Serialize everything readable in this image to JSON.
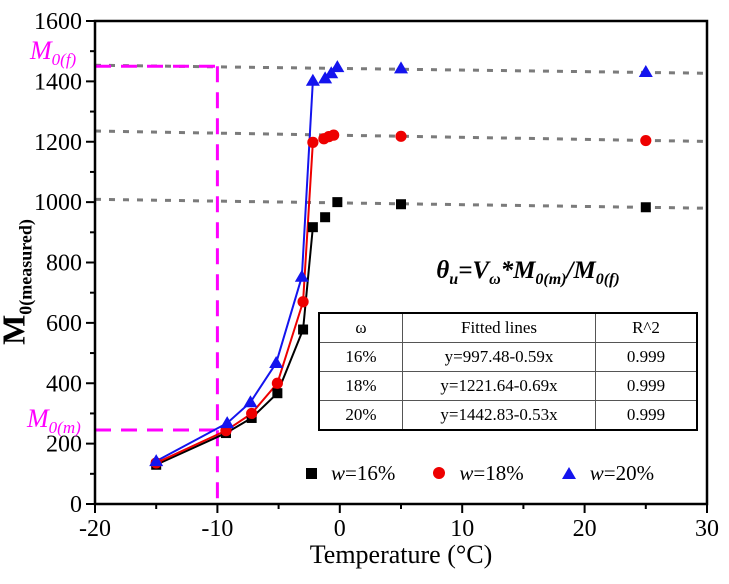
{
  "figure": {
    "background": "#ffffff",
    "frame_color": "#000000",
    "grid_dash_color": "#7b7b7b",
    "reference_color": "#ff00ff"
  },
  "axes": {
    "x": {
      "label": "Temperature (°C)",
      "min": -20,
      "max": 30,
      "major_ticks": [
        -20,
        -10,
        0,
        10,
        20,
        30
      ],
      "minor_step": 5
    },
    "y": {
      "label_main": "M",
      "label_sub": "0(measured)",
      "min": 0,
      "max": 1600,
      "major_ticks": [
        0,
        200,
        400,
        600,
        800,
        1000,
        1200,
        1400,
        1600
      ],
      "minor_step": 100
    }
  },
  "annotations": {
    "m0f": {
      "main": "M",
      "sub": "0(f)"
    },
    "m0m": {
      "main": "M",
      "sub": "0(m)"
    },
    "m0f_value": 1450,
    "m0m_value": 245,
    "ref_x": -10,
    "m0m_x_end": -8.8,
    "equation": {
      "p1": "θ",
      "s1": "u",
      "p2": "=V",
      "s2": "ω",
      "p3": "*M",
      "s3": "0(m)",
      "p4": "/M",
      "s4": "0(f)"
    }
  },
  "table": {
    "headers": [
      "ω",
      "Fitted lines",
      "R^2"
    ],
    "rows": [
      [
        "16%",
        "y=997.48-0.59x",
        "0.999"
      ],
      [
        "18%",
        "y=1221.64-0.69x",
        "0.999"
      ],
      [
        "20%",
        "y=1442.83-0.53x",
        "0.999"
      ]
    ]
  },
  "legend": {
    "items": [
      {
        "marker": "square",
        "color": "#000000",
        "var": "w",
        "rest": "=16%"
      },
      {
        "marker": "circle",
        "color": "#ee0000",
        "var": "w",
        "rest": "=18%"
      },
      {
        "marker": "triangle",
        "color": "#1414ee",
        "var": "w",
        "rest": "=20%"
      }
    ]
  },
  "chart_data": {
    "type": "line",
    "title": "",
    "xlabel": "Temperature (°C)",
    "ylabel": "M0(measured)",
    "xlim": [
      -20,
      30
    ],
    "ylim": [
      0,
      1600
    ],
    "grid": false,
    "legend_position": "bottom-inside",
    "series": [
      {
        "name": "w=16%",
        "marker": "square",
        "color": "#000000",
        "line_through": 6,
        "points": [
          [
            -15,
            130
          ],
          [
            -9.3,
            235
          ],
          [
            -7.2,
            285
          ],
          [
            -5.1,
            367
          ],
          [
            -3,
            578
          ],
          [
            -2.2,
            917
          ],
          [
            -1.2,
            950
          ],
          [
            -0.2,
            1000
          ],
          [
            5,
            993
          ],
          [
            25,
            983
          ]
        ],
        "fit": {
          "equation": "y=997.48-0.59x",
          "intercept": 997.48,
          "slope": -0.59,
          "r2": 0.999
        }
      },
      {
        "name": "w=18%",
        "marker": "circle",
        "color": "#ee0000",
        "line_through": 6,
        "points": [
          [
            -15,
            136
          ],
          [
            -9.3,
            243
          ],
          [
            -7.2,
            300
          ],
          [
            -5.1,
            400
          ],
          [
            -3,
            670
          ],
          [
            -2.2,
            1198
          ],
          [
            -1.3,
            1210
          ],
          [
            -0.9,
            1217
          ],
          [
            -0.5,
            1222
          ],
          [
            5,
            1218
          ],
          [
            25,
            1204
          ]
        ],
        "fit": {
          "equation": "y=1221.64-0.69x",
          "intercept": 1221.64,
          "slope": -0.69,
          "r2": 0.999
        }
      },
      {
        "name": "w=20%",
        "marker": "triangle",
        "color": "#1414ee",
        "line_through": 6,
        "points": [
          [
            -15,
            142
          ],
          [
            -9.2,
            268
          ],
          [
            -7.3,
            337
          ],
          [
            -5.2,
            467
          ],
          [
            -3.1,
            753
          ],
          [
            -2.2,
            1402
          ],
          [
            -1.2,
            1410
          ],
          [
            -0.7,
            1427
          ],
          [
            -0.2,
            1447
          ],
          [
            5,
            1443
          ],
          [
            25,
            1431
          ]
        ],
        "fit": {
          "equation": "y=1442.83-0.53x",
          "intercept": 1442.83,
          "slope": -0.53,
          "r2": 0.999
        }
      }
    ],
    "reference_lines": {
      "m0f_horizontal_y": 1450,
      "m0m_horizontal_y": 245,
      "vertical_x": -10
    }
  }
}
